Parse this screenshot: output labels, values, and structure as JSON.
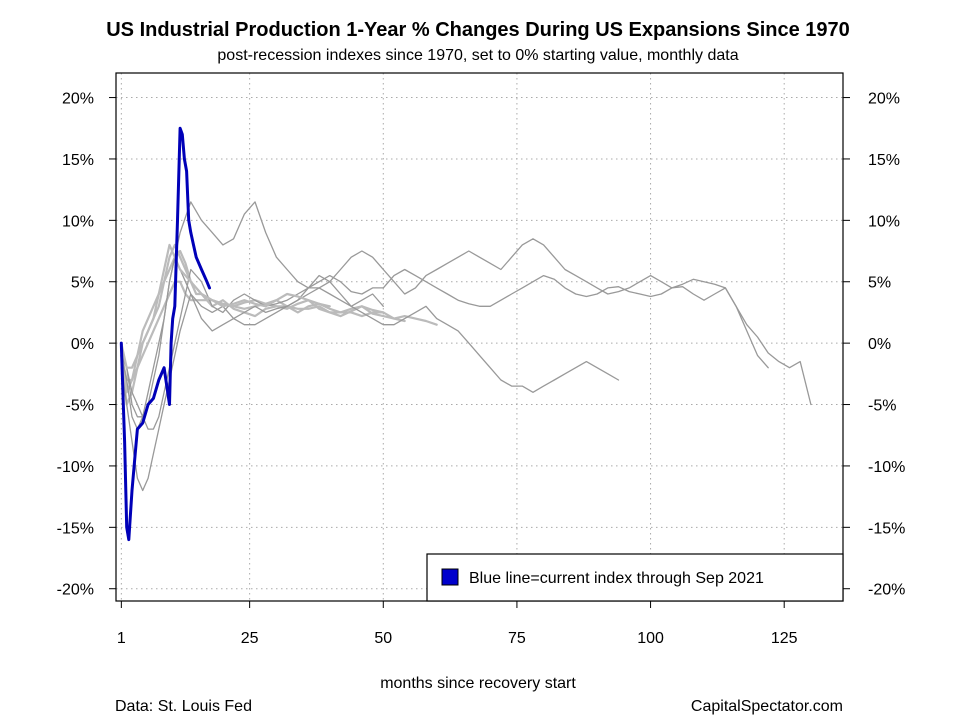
{
  "chart_data": {
    "type": "line",
    "title": "US Industrial Production 1-Year % Changes During US Expansions Since 1970",
    "subtitle": "post-recession indexes since 1970, set to 0% starting value, monthly data",
    "xlabel": "months since recovery start",
    "ylabel": "",
    "xlim": [
      0,
      136
    ],
    "ylim": [
      -21,
      22
    ],
    "x_ticks": [
      1,
      25,
      50,
      75,
      100,
      125
    ],
    "x_tick_labels": [
      "1",
      "25",
      "50",
      "75",
      "100",
      "125"
    ],
    "y_ticks": [
      -20,
      -15,
      -10,
      -5,
      0,
      5,
      10,
      15,
      20
    ],
    "y_tick_labels": [
      "-20%",
      "-15%",
      "-10%",
      "-5%",
      "0%",
      "5%",
      "10%",
      "15%",
      "20%"
    ],
    "grid": true,
    "legend_position": "bottom-right",
    "legend": [
      {
        "label": "Blue line=current index through Sep 2021",
        "color": "#0000cc"
      }
    ],
    "source": "Data: St. Louis Fed",
    "credit": "CapitalSpectator.com",
    "series": [
      {
        "color": "#0000b8",
        "highlight": true,
        "x": [
          1,
          1.3,
          1.6,
          2,
          2.4,
          3,
          3.6,
          4,
          5,
          6,
          7,
          8,
          9,
          10,
          10.3,
          10.6,
          11,
          11.5,
          12,
          12.4,
          12.8,
          13.2,
          13.6,
          14,
          14.5,
          15,
          16,
          17,
          17.5
        ],
        "y": [
          0,
          -4,
          -8,
          -15,
          -16,
          -12,
          -9,
          -7,
          -6.5,
          -5,
          -4.5,
          -3,
          -2,
          -5,
          0,
          2,
          3,
          10,
          17.5,
          17,
          15,
          14,
          10,
          9,
          8,
          7,
          6,
          5,
          4.5
        ]
      },
      {
        "color": "#bbbbbb",
        "highlight": false,
        "x": [
          1,
          2,
          3,
          4,
          5,
          6,
          7,
          8,
          9,
          10,
          11,
          12,
          13,
          14,
          15,
          16,
          17,
          18,
          20,
          22,
          24,
          26,
          28,
          30,
          32,
          34,
          36,
          38,
          40,
          42,
          44,
          46,
          48,
          50,
          52,
          54,
          56,
          58,
          60
        ],
        "y": [
          -1,
          -3,
          -3,
          -2,
          -1,
          0,
          1,
          2,
          3,
          4,
          5,
          5,
          4,
          3.5,
          3.5,
          3.5,
          3.5,
          3.5,
          3.2,
          3.0,
          2.8,
          3.0,
          3.2,
          3.5,
          3.0,
          2.5,
          3.0,
          3.2,
          2.8,
          2.5,
          2.5,
          2.2,
          2.5,
          2.5,
          2.0,
          2.2,
          2.0,
          1.8,
          1.5
        ]
      },
      {
        "color": "#bbbbbb",
        "highlight": false,
        "x": [
          1,
          2,
          3,
          4,
          5,
          6,
          7,
          8,
          9,
          10,
          11,
          12,
          13,
          14,
          15,
          16,
          18,
          20,
          22,
          24,
          26,
          28,
          30,
          32,
          34,
          36,
          38,
          40,
          42,
          44,
          46,
          48,
          50
        ],
        "y": [
          -1,
          -5,
          -4,
          -2,
          0,
          1,
          2,
          3,
          5,
          7,
          8,
          7,
          6,
          5,
          4,
          4,
          3.5,
          3.2,
          3.0,
          3.3,
          3.5,
          3.2,
          3.0,
          3.0,
          2.8,
          2.8,
          3.0,
          2.5,
          2.5,
          2.8,
          3.0,
          2.7,
          2.5
        ]
      },
      {
        "color": "#bbbbbb",
        "highlight": false,
        "x": [
          1,
          2,
          3,
          4,
          5,
          6,
          7,
          8,
          9,
          10,
          11,
          12,
          13,
          14,
          16,
          18,
          20,
          22,
          24,
          26,
          28,
          30,
          32,
          34,
          36,
          38,
          40,
          42,
          44,
          46,
          48,
          50,
          52,
          54
        ],
        "y": [
          0,
          -4,
          -3,
          -1,
          1,
          2,
          3,
          4,
          5,
          6,
          7,
          7.5,
          6.5,
          5,
          4,
          3,
          3.5,
          2.8,
          2.5,
          2.2,
          2.8,
          3.0,
          2.8,
          3.2,
          3.5,
          2.8,
          2.5,
          2.2,
          2.6,
          3.0,
          2.4,
          2.2,
          2.0,
          1.8
        ]
      },
      {
        "color": "#999999",
        "highlight": false,
        "x": [
          1,
          2,
          3,
          4,
          5,
          6,
          7,
          8,
          9,
          10,
          11,
          12,
          13,
          14,
          15,
          16,
          18,
          20,
          22,
          24,
          26,
          28,
          30,
          32,
          34,
          36,
          38,
          40,
          42,
          44,
          46,
          48,
          50,
          52,
          54,
          56,
          58,
          60,
          62,
          64,
          66,
          68,
          70,
          72,
          74,
          76,
          78,
          80,
          82,
          84,
          86,
          88,
          90,
          92,
          94
        ],
        "y": [
          -1,
          -3,
          -6,
          -7,
          -6,
          -5,
          -3,
          -1,
          2,
          5,
          7,
          6,
          5,
          4,
          3.5,
          3,
          2.5,
          3,
          2,
          1.5,
          1.5,
          2,
          2.5,
          3,
          3.5,
          4.5,
          5.5,
          5,
          4,
          3,
          2.5,
          2,
          1.5,
          1.5,
          2,
          2.5,
          3,
          2,
          1.5,
          1,
          0,
          -1,
          -2,
          -3,
          -3.5,
          -3.5,
          -4,
          -3.5,
          -3,
          -2.5,
          -2,
          -1.5,
          -2,
          -2.5,
          -3
        ]
      },
      {
        "color": "#999999",
        "highlight": false,
        "x": [
          1,
          2,
          3,
          4,
          5,
          6,
          7,
          8,
          9,
          10,
          11,
          12,
          14,
          16,
          18,
          20,
          22,
          24,
          26,
          28,
          30,
          32,
          34,
          36,
          38,
          40,
          42,
          44,
          46,
          48,
          50
        ],
        "y": [
          -1,
          -2,
          -5,
          -6,
          -6,
          -4,
          -2,
          0,
          2,
          5,
          7,
          9,
          11.5,
          10,
          9,
          8,
          8.5,
          10.5,
          11.5,
          9,
          7,
          6,
          5,
          4.5,
          4.5,
          4,
          3.5,
          3,
          3.5,
          4,
          3
        ]
      },
      {
        "color": "#999999",
        "highlight": false,
        "x": [
          1,
          2,
          3,
          4,
          5,
          6,
          7,
          8,
          9,
          10,
          11,
          12,
          14,
          16,
          18,
          20,
          22,
          24,
          26,
          28,
          30,
          32,
          34,
          36,
          38,
          40,
          42,
          44,
          46,
          48,
          50,
          52,
          54,
          56,
          58,
          60,
          62,
          64,
          66,
          68,
          70,
          72,
          74,
          76,
          78,
          80,
          82,
          84,
          86,
          88,
          90,
          92,
          94,
          96,
          98,
          100,
          102,
          104,
          106,
          108,
          110,
          112,
          114,
          116,
          118,
          120,
          122,
          124,
          126,
          128,
          130
        ],
        "y": [
          0,
          -2,
          -4,
          -5,
          -6,
          -7,
          -7,
          -6,
          -4,
          -2,
          0,
          2,
          6,
          5,
          3,
          2.5,
          3.5,
          4,
          3.5,
          3,
          3.2,
          3.5,
          4,
          4.5,
          5,
          5.5,
          5,
          4.2,
          4,
          4.5,
          4.5,
          5.5,
          6,
          5.5,
          5,
          4.5,
          4,
          3.5,
          3.2,
          3,
          3,
          3.5,
          4,
          4.5,
          5,
          5.5,
          5.2,
          4.5,
          4,
          3.8,
          4,
          4.5,
          4.6,
          4.2,
          4,
          3.8,
          4,
          4.5,
          4.6,
          4,
          3.5,
          4,
          4.5,
          3,
          1.5,
          0.5,
          -0.8,
          -1.5,
          -2,
          -1.5,
          -5
        ]
      },
      {
        "color": "#999999",
        "highlight": false,
        "x": [
          1,
          2,
          3,
          4,
          5,
          6,
          7,
          8,
          9,
          10,
          11,
          12,
          14,
          16,
          18,
          20,
          22,
          24,
          26,
          28,
          30,
          32,
          34,
          36,
          38,
          40,
          42,
          44,
          46,
          48,
          50,
          52,
          54,
          56,
          58,
          60,
          62,
          64,
          66,
          68,
          70,
          72,
          74,
          76,
          78,
          80,
          82,
          84,
          86,
          88,
          90,
          92,
          94,
          96,
          98,
          100,
          102,
          104,
          106,
          108,
          110,
          112,
          114,
          116,
          118,
          120,
          122
        ],
        "y": [
          -2,
          -5,
          -8,
          -11,
          -12,
          -11,
          -9,
          -7,
          -5,
          -3,
          -1,
          1,
          4,
          2,
          1,
          1.5,
          2,
          2.5,
          3,
          2.5,
          2.8,
          3,
          3.5,
          4,
          4.5,
          5,
          6,
          7,
          7.5,
          7,
          6,
          5,
          4,
          4.5,
          5.5,
          6,
          6.5,
          7,
          7.5,
          7,
          6.5,
          6,
          7,
          8,
          8.5,
          8,
          7,
          6,
          5.5,
          5,
          4.5,
          4,
          4.2,
          4.5,
          5,
          5.5,
          5,
          4.5,
          4.8,
          5.2,
          5,
          4.8,
          4.5,
          3,
          1,
          -1,
          -2
        ]
      },
      {
        "color": "#bbbbbb",
        "highlight": false,
        "x": [
          1,
          2,
          3,
          4,
          5,
          6,
          7,
          8,
          9,
          10,
          11,
          12,
          14,
          16,
          18,
          20,
          22,
          24,
          26,
          28,
          30,
          32,
          34,
          36,
          38,
          40
        ],
        "y": [
          0,
          -2,
          -2,
          -1,
          0,
          1,
          2,
          4,
          6,
          8,
          7,
          6,
          5,
          4,
          3.5,
          3,
          3.2,
          3.5,
          3.2,
          3,
          3.5,
          4,
          3.8,
          3.5,
          3.2,
          3
        ]
      }
    ]
  }
}
